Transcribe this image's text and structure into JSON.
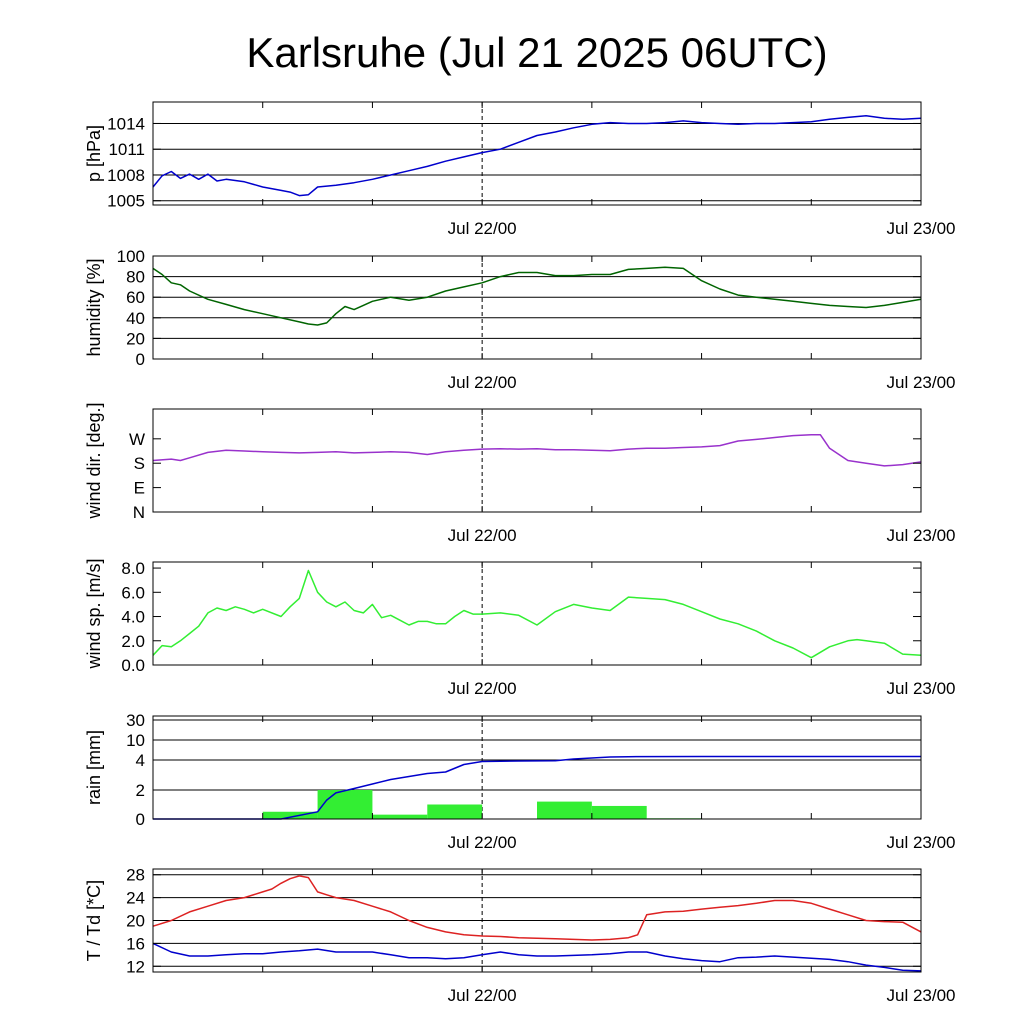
{
  "title": "Karlsruhe (Jul 21 2025 06UTC)",
  "x_tick_labels": [
    "Jul 22/00",
    "Jul 23/00"
  ],
  "chart_data": [
    {
      "type": "line",
      "ylabel": "p [hPa]",
      "xlim_hours": [
        0,
        42
      ],
      "ylim": [
        1004.5,
        1016.5
      ],
      "yticks": [
        1005,
        1008,
        1011,
        1014
      ],
      "ytick_labels": [
        "1005",
        "1008",
        "1011",
        "1014"
      ],
      "grid_lines": [
        1005,
        1008,
        1011,
        1014
      ],
      "series": [
        {
          "color": "#0000cc",
          "x": [
            0,
            0.5,
            1,
            1.5,
            2,
            2.5,
            3,
            3.5,
            4,
            5,
            6,
            7,
            7.5,
            8,
            8.5,
            9,
            10,
            11,
            12,
            13,
            14,
            15,
            16,
            17,
            18,
            19,
            20,
            21,
            22,
            23,
            24,
            25,
            26,
            27,
            28,
            29,
            30,
            31,
            32,
            33,
            34,
            35,
            36,
            37,
            38,
            39,
            40,
            41,
            42
          ],
          "y": [
            1006.6,
            1007.9,
            1008.4,
            1007.6,
            1008.1,
            1007.5,
            1008.1,
            1007.3,
            1007.5,
            1007.2,
            1006.6,
            1006.2,
            1006.0,
            1005.6,
            1005.7,
            1006.6,
            1006.8,
            1007.1,
            1007.5,
            1008.0,
            1008.5,
            1009.0,
            1009.6,
            1010.1,
            1010.6,
            1011.0,
            1011.8,
            1012.6,
            1013.0,
            1013.5,
            1013.9,
            1014.1,
            1014.0,
            1014.0,
            1014.1,
            1014.3,
            1014.1,
            1014.0,
            1013.9,
            1014.0,
            1014.0,
            1014.1,
            1014.2,
            1014.5,
            1014.7,
            1014.9,
            1014.6,
            1014.5,
            1014.6
          ]
        }
      ]
    },
    {
      "type": "line",
      "ylabel": "humidity [%]",
      "xlim_hours": [
        0,
        42
      ],
      "ylim": [
        0,
        100
      ],
      "yticks": [
        0,
        20,
        40,
        60,
        80,
        100
      ],
      "ytick_labels": [
        "0",
        "20",
        "40",
        "60",
        "80",
        "100"
      ],
      "grid_lines": [
        20,
        40,
        60,
        80
      ],
      "series": [
        {
          "color": "#006400",
          "x": [
            0,
            0.5,
            1,
            1.5,
            2,
            3,
            4,
            5,
            6,
            7,
            8,
            8.5,
            9,
            9.5,
            10,
            10.5,
            11,
            11.5,
            12,
            13,
            14,
            15,
            16,
            17,
            18,
            19,
            20,
            21,
            22,
            23,
            24,
            25,
            26,
            27,
            28,
            29,
            30,
            31,
            32,
            33,
            34,
            35,
            36,
            37,
            38,
            39,
            40,
            41,
            42
          ],
          "y": [
            88,
            82,
            74,
            72,
            66,
            58,
            53,
            48,
            44,
            40,
            36,
            34,
            33,
            35,
            44,
            51,
            48,
            52,
            56,
            60,
            57,
            60,
            66,
            70,
            74,
            80,
            84,
            84,
            81,
            81,
            82,
            82,
            87,
            88,
            89,
            88,
            76,
            68,
            62,
            60,
            58,
            56,
            54,
            52,
            51,
            50,
            52,
            55,
            58
          ]
        }
      ]
    },
    {
      "type": "line",
      "ylabel": "wind dir. [deg.]",
      "xlim_hours": [
        0,
        42
      ],
      "ylim": [
        0,
        380
      ],
      "yticks": [
        0,
        90,
        180,
        270
      ],
      "ytick_labels": [
        "N",
        "E",
        "S",
        "W"
      ],
      "grid_lines": [],
      "series": [
        {
          "color": "#9932cc",
          "x": [
            0,
            1,
            1.5,
            2,
            3,
            4,
            5,
            6,
            7,
            8,
            9,
            10,
            11,
            12,
            13,
            14,
            15,
            16,
            17,
            18,
            19,
            20,
            21,
            22,
            23,
            24,
            25,
            26,
            27,
            28,
            29,
            30,
            31,
            32,
            33,
            34,
            35,
            36,
            36.5,
            37,
            38,
            39,
            40,
            41,
            42
          ],
          "y": [
            190,
            195,
            190,
            200,
            220,
            228,
            225,
            222,
            220,
            218,
            220,
            222,
            218,
            220,
            222,
            220,
            212,
            222,
            228,
            232,
            233,
            232,
            233,
            230,
            230,
            228,
            226,
            232,
            235,
            235,
            238,
            240,
            245,
            262,
            268,
            275,
            282,
            285,
            285,
            235,
            190,
            180,
            170,
            175,
            185
          ]
        }
      ]
    },
    {
      "type": "line",
      "ylabel": "wind sp. [m/s]",
      "xlim_hours": [
        0,
        42
      ],
      "ylim": [
        0,
        8.5
      ],
      "yticks": [
        0,
        2,
        4,
        6,
        8
      ],
      "ytick_labels": [
        "0.0",
        "2.0",
        "4.0",
        "6.0",
        "8.0"
      ],
      "grid_lines": [],
      "series": [
        {
          "color": "#33ee33",
          "x": [
            0,
            0.5,
            1,
            1.5,
            2,
            2.5,
            3,
            3.5,
            4,
            4.5,
            5,
            5.5,
            6,
            7,
            7.5,
            8,
            8.5,
            9,
            9.5,
            10,
            10.5,
            11,
            11.5,
            12,
            12.5,
            13,
            13.5,
            14,
            14.5,
            15,
            15.5,
            16,
            16.5,
            17,
            17.5,
            18,
            19,
            20,
            21,
            22,
            23,
            24,
            25,
            26,
            27,
            28,
            29,
            30,
            31,
            32,
            33,
            34,
            35,
            36,
            37,
            38,
            38.5,
            39,
            40,
            41,
            42
          ],
          "y": [
            0.8,
            1.6,
            1.5,
            2.0,
            2.6,
            3.2,
            4.3,
            4.7,
            4.5,
            4.8,
            4.6,
            4.3,
            4.6,
            4.0,
            4.8,
            5.5,
            7.8,
            6.0,
            5.2,
            4.8,
            5.2,
            4.5,
            4.3,
            5.0,
            3.9,
            4.1,
            3.7,
            3.3,
            3.6,
            3.6,
            3.4,
            3.4,
            4.0,
            4.5,
            4.2,
            4.2,
            4.3,
            4.1,
            3.3,
            4.4,
            5.0,
            4.7,
            4.5,
            5.6,
            5.5,
            5.4,
            5.0,
            4.4,
            3.8,
            3.4,
            2.8,
            2.0,
            1.4,
            0.6,
            1.5,
            2.0,
            2.1,
            2.0,
            1.8,
            0.9,
            0.8
          ]
        }
      ]
    },
    {
      "type": "bar+line",
      "ylabel": "rain [mm]",
      "xlim_hours": [
        0,
        42
      ],
      "scale": "piecewise: 0-2-4 linear, then 4-10-30",
      "yticks": [
        0,
        2,
        4,
        10,
        30
      ],
      "ytick_labels": [
        "0",
        "2",
        "4",
        "10",
        "30"
      ],
      "grid_lines": [
        2,
        4,
        10,
        30
      ],
      "bars": {
        "color": "#33ee33",
        "bins": [
          {
            "start": 6,
            "end": 9,
            "value": 0.5
          },
          {
            "start": 9,
            "end": 12,
            "value": 2.0
          },
          {
            "start": 12,
            "end": 15,
            "value": 0.3
          },
          {
            "start": 15,
            "end": 18,
            "value": 1.0
          },
          {
            "start": 18,
            "end": 21,
            "value": 0.0
          },
          {
            "start": 21,
            "end": 24,
            "value": 1.2
          },
          {
            "start": 24,
            "end": 27,
            "value": 0.9
          },
          {
            "start": 27,
            "end": 30,
            "value": 0.05
          }
        ]
      },
      "series": [
        {
          "color": "#0000cc",
          "x": [
            0,
            7,
            9,
            9.5,
            10,
            11,
            12,
            13,
            14,
            15,
            16,
            17,
            18,
            19,
            20,
            21,
            22,
            23,
            24,
            25,
            26,
            30,
            36,
            42
          ],
          "y": [
            0,
            0,
            0.5,
            1.3,
            1.8,
            2.1,
            2.4,
            2.7,
            2.9,
            3.1,
            3.2,
            3.7,
            3.9,
            3.92,
            3.93,
            3.94,
            3.95,
            4.3,
            4.6,
            4.9,
            5.0,
            5.05,
            5.05,
            5.05
          ]
        }
      ]
    },
    {
      "type": "line",
      "ylabel": "T / Td [*C]",
      "xlim_hours": [
        0,
        42
      ],
      "ylim": [
        11,
        29
      ],
      "yticks": [
        12,
        16,
        20,
        24,
        28
      ],
      "ytick_labels": [
        "12",
        "16",
        "20",
        "24",
        "28"
      ],
      "grid_lines": [
        12,
        16,
        20,
        24,
        28
      ],
      "series": [
        {
          "color": "#dd2222",
          "x": [
            0,
            1,
            2,
            3,
            4,
            5,
            6,
            6.5,
            7,
            7.5,
            8,
            8.5,
            9,
            9.5,
            10,
            11,
            12,
            13,
            14,
            15,
            16,
            17,
            18,
            19,
            20,
            21,
            22,
            23,
            24,
            25,
            26,
            26.5,
            27,
            28,
            29,
            30,
            31,
            32,
            33,
            34,
            35,
            36,
            37,
            38,
            39,
            40,
            41,
            42
          ],
          "y": [
            19,
            20,
            21.5,
            22.5,
            23.5,
            24.0,
            25.0,
            25.5,
            26.5,
            27.3,
            27.8,
            27.5,
            25.0,
            24.5,
            24.0,
            23.5,
            22.5,
            21.5,
            20.0,
            18.8,
            18.0,
            17.5,
            17.3,
            17.2,
            17.0,
            16.9,
            16.8,
            16.7,
            16.6,
            16.7,
            17.0,
            17.5,
            21.0,
            21.5,
            21.6,
            22.0,
            22.3,
            22.6,
            23.0,
            23.5,
            23.5,
            23.0,
            22.0,
            21.0,
            20.0,
            19.8,
            19.7,
            18.0
          ]
        },
        {
          "color": "#0000cc",
          "x": [
            0,
            1,
            2,
            3,
            4,
            5,
            6,
            7,
            8,
            9,
            10,
            11,
            12,
            13,
            14,
            15,
            16,
            17,
            18,
            19,
            20,
            21,
            22,
            23,
            24,
            25,
            26,
            27,
            28,
            29,
            30,
            31,
            32,
            33,
            34,
            35,
            36,
            37,
            38,
            39,
            40,
            41,
            42
          ],
          "y": [
            16.0,
            14.5,
            13.8,
            13.8,
            14.0,
            14.2,
            14.2,
            14.5,
            14.7,
            15.0,
            14.5,
            14.5,
            14.5,
            14.0,
            13.5,
            13.5,
            13.3,
            13.5,
            14.0,
            14.5,
            14.0,
            13.8,
            13.8,
            13.9,
            14.0,
            14.2,
            14.5,
            14.5,
            13.8,
            13.3,
            13.0,
            12.8,
            13.5,
            13.6,
            13.8,
            13.6,
            13.4,
            13.2,
            12.8,
            12.2,
            11.8,
            11.3,
            11.2
          ]
        }
      ]
    }
  ]
}
